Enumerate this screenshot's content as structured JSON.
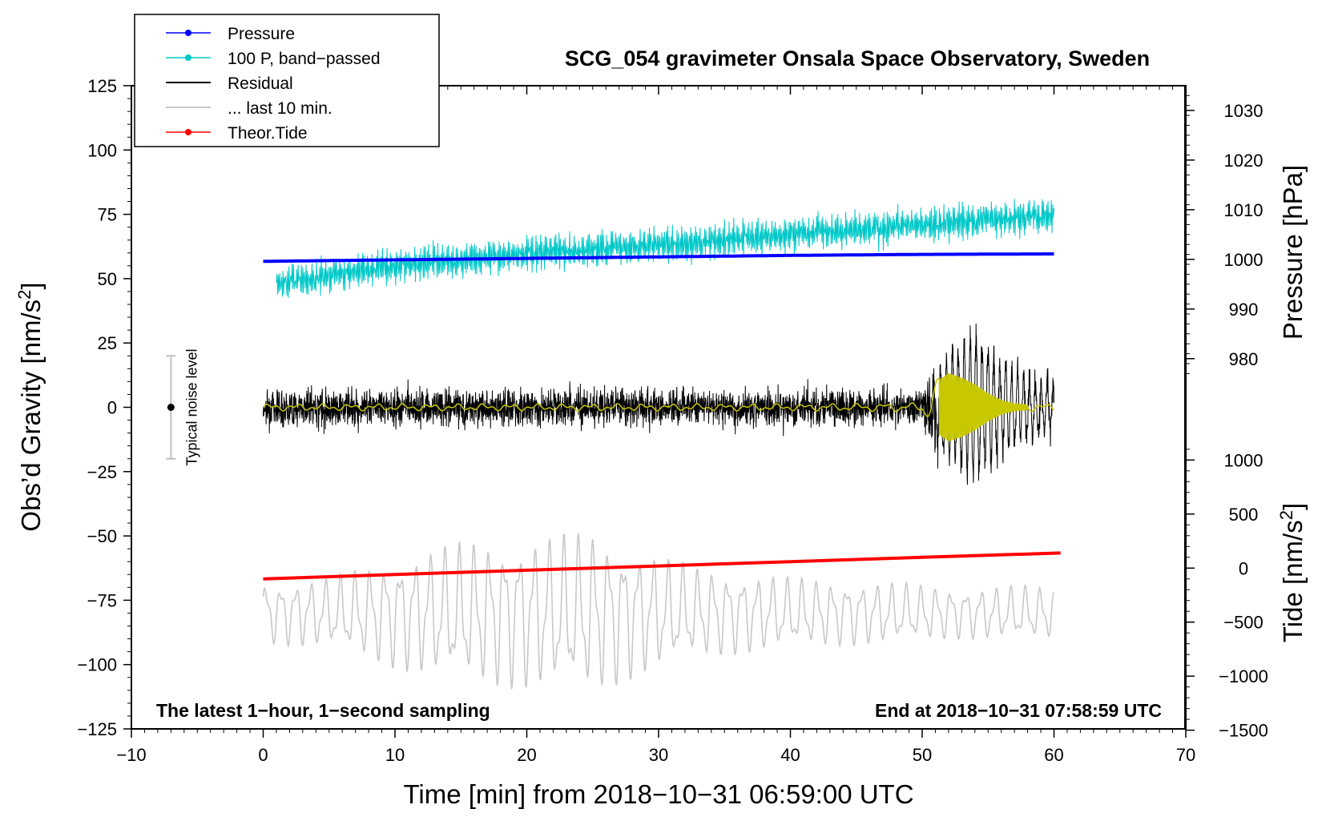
{
  "chart_data": {
    "type": "line",
    "title": "SCG_054 gravimeter Onsala Space Observatory, Sweden",
    "xlabel": "Time [min] from 2018−10−31 06:59:00 UTC",
    "ylabel_left": "Obs’d Gravity [nm/s²]",
    "ylabel_left_main": "Obs’d Gravity [nm/s",
    "ylabel_left_sup": "2",
    "ylabel_left_end": "]",
    "ylabel_right_top": "Pressure [hPa]",
    "ylabel_right_bottom": "Tide [nm/s²]",
    "ylabel_right_bottom_main": "Tide [nm/s",
    "ylabel_right_bottom_sup": "2",
    "ylabel_right_bottom_end": "]",
    "xlim": [
      -10,
      70
    ],
    "ylim_left": [
      -125,
      125
    ],
    "x_ticks": [
      -10,
      0,
      10,
      20,
      30,
      40,
      50,
      60,
      70
    ],
    "x_tick_labels": [
      "−10",
      "0",
      "10",
      "20",
      "30",
      "40",
      "50",
      "60",
      "70"
    ],
    "y_left_ticks": [
      125,
      100,
      75,
      50,
      25,
      0,
      -25,
      -50,
      -75,
      -100,
      -125
    ],
    "y_left_tick_labels": [
      "125",
      "100",
      "75",
      "50",
      "25",
      "0",
      "−25",
      "−50",
      "−75",
      "−100",
      "−125"
    ],
    "pressure_axis": {
      "ticks": [
        1030,
        1020,
        1010,
        1000,
        990,
        980
      ],
      "tick_labels": [
        "1030",
        "1020",
        "1010",
        "1000",
        "990",
        "980"
      ],
      "ref_pressure_hpa": 1000,
      "ref_left_value": 57.5,
      "left_units_per_hpa": 1.93
    },
    "tide_axis": {
      "ticks": [
        1000,
        500,
        0,
        -500,
        -1000,
        -1500
      ],
      "tick_labels": [
        "1000",
        "500",
        "0",
        "−500",
        "−1000",
        "−1500"
      ],
      "ref_tide": 0,
      "ref_left_value": -62.5,
      "left_units_per_nms2": 0.042
    },
    "annotation_left": "The latest 1−hour, 1−second sampling",
    "annotation_right": "End at 2018−10−31 07:58:59 UTC",
    "noise_indicator": {
      "label": "Typical noise level",
      "x": -7,
      "center": 0,
      "low": -20,
      "high": 20
    },
    "legend": {
      "position": "top-left",
      "entries": [
        {
          "label": "Pressure",
          "color": "#0000ff",
          "marker": "dot"
        },
        {
          "label": "100 P, band−passed",
          "color": "#00c8c8",
          "marker": "dot"
        },
        {
          "label": "Residual",
          "color": "#000000",
          "marker": "none"
        },
        {
          "label": "... last 10 min.",
          "color": "#c8c8c8",
          "marker": "none"
        },
        {
          "label": "Theor.Tide",
          "color": "#ff0000",
          "marker": "dot"
        }
      ]
    },
    "series": [
      {
        "name": "Pressure",
        "units": "hPa",
        "axis": "pressure",
        "color": "#0000ff",
        "x": [
          0,
          10,
          20,
          30,
          40,
          50,
          60
        ],
        "values": [
          999.6,
          999.9,
          1000.2,
          1000.5,
          1000.8,
          1001.0,
          1001.1
        ]
      },
      {
        "name": "100 P, band−passed",
        "units": "nm/s²",
        "axis": "left",
        "color": "#00c8c8",
        "x": [
          1,
          10,
          20,
          30,
          40,
          50,
          60
        ],
        "mean": [
          48,
          55,
          60,
          63,
          67,
          71,
          75
        ],
        "amplitude": [
          6,
          7,
          7,
          7,
          7,
          7,
          7
        ]
      },
      {
        "name": "Residual",
        "units": "nm/s²",
        "axis": "left",
        "color": "#000000",
        "x": [
          0,
          10,
          20,
          30,
          40,
          50,
          51,
          53,
          54,
          55,
          56,
          58,
          60
        ],
        "amplitude": [
          5,
          5,
          5,
          5,
          5,
          5,
          15,
          28,
          30,
          25,
          20,
          12,
          10
        ]
      },
      {
        "name": "... last 10 min.",
        "units": "nm/s²",
        "axis": "left",
        "color": "#c8c8c8",
        "x": [
          0,
          5,
          10,
          15,
          20,
          25,
          28,
          33,
          38,
          43,
          48,
          53,
          58,
          60
        ],
        "center": [
          -80,
          -80,
          -80,
          -80,
          -80,
          -80,
          -80,
          -80,
          -80,
          -80,
          -80,
          -80,
          -80,
          -80
        ],
        "amplitude": [
          12,
          14,
          22,
          28,
          30,
          32,
          26,
          18,
          15,
          13,
          12,
          10,
          11,
          10
        ]
      },
      {
        "name": "Smoothed residual",
        "units": "nm/s²",
        "axis": "left",
        "color": "#c8c800",
        "x": [
          0,
          10,
          20,
          30,
          40,
          50,
          51.3,
          52,
          53,
          54,
          55,
          56,
          57,
          58,
          60
        ],
        "amplitude": [
          0.8,
          0.8,
          0.8,
          0.8,
          0.8,
          1.2,
          12,
          15,
          13,
          10,
          6,
          3,
          1.5,
          1,
          0.8
        ]
      },
      {
        "name": "Theor.Tide",
        "units": "nm/s²",
        "axis": "tide",
        "color": "#ff0000",
        "x": [
          0,
          10,
          20,
          30,
          40,
          50,
          60.5
        ],
        "values": [
          -100,
          -60,
          -20,
          20,
          60,
          100,
          140
        ]
      }
    ]
  }
}
